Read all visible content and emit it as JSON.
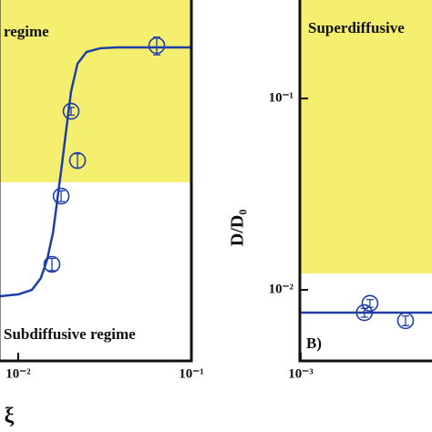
{
  "chart_data": [
    {
      "type": "scatter",
      "xlabel": "ξ",
      "log_x": true,
      "log_y": true,
      "xlim": [
        0.00785,
        0.1
      ],
      "ylim": [
        0.0043,
        0.327
      ],
      "xticks": [
        {
          "value": 0.01,
          "label": "10⁻²"
        },
        {
          "value": 0.1,
          "label": "10⁻¹"
        }
      ],
      "yticks": [],
      "shaded_above": 0.0365,
      "shade_color": "#f4ef6e",
      "annotations": [
        "regime",
        "Subdiffusive regime"
      ],
      "line": {
        "color": "#1f3fa8",
        "x": [
          0.00785,
          0.01,
          0.012,
          0.0135,
          0.0147,
          0.0159,
          0.0168,
          0.0179,
          0.019,
          0.0202,
          0.022,
          0.0248,
          0.0298,
          0.0379,
          0.1
        ],
        "values": [
          0.00927,
          0.00947,
          0.01,
          0.0115,
          0.0144,
          0.02,
          0.0293,
          0.0454,
          0.0704,
          0.109,
          0.152,
          0.175,
          0.183,
          0.185,
          0.185
        ]
      },
      "points": {
        "color": "#1f3fa8",
        "x": [
          0.01566,
          0.0177,
          0.022,
          0.0202,
          0.0631
        ],
        "values": [
          0.0136,
          0.0309,
          0.0474,
          0.0858,
          0.189
        ],
        "errors": [
          0.001,
          0.002,
          0.004,
          0.004,
          0.02
        ]
      }
    },
    {
      "type": "scatter",
      "ylabel": "D/D₀",
      "log_x": true,
      "log_y": true,
      "xlim": [
        0.001,
        0.00573
      ],
      "ylim": [
        0.0043,
        0.327
      ],
      "xticks": [
        {
          "value": 0.001,
          "label": "10⁻³"
        }
      ],
      "yticks": [
        {
          "value": 0.01,
          "label": "10⁻²"
        },
        {
          "value": 0.1,
          "label": "10⁻¹"
        }
      ],
      "shaded_above": 0.0122,
      "shade_color": "#f4ef6e",
      "annotations": [
        "Superdiffusive",
        "B)"
      ],
      "line": {
        "color": "#1f3fa8",
        "x": [
          0.001,
          0.00573
        ],
        "values": [
          0.0076,
          0.0076
        ]
      },
      "points": {
        "color": "#1f3fa8",
        "x": [
          0.00233,
          0.00251,
          0.00403
        ],
        "values": [
          0.0076,
          0.0085,
          0.0069
        ],
        "errors": [
          0.0004,
          0.0004,
          0.0004
        ]
      }
    }
  ]
}
